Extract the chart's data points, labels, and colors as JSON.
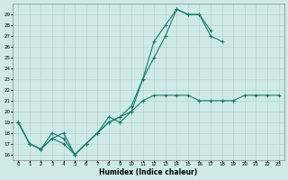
{
  "xlabel": "Humidex (Indice chaleur)",
  "bg_color": "#ceeae6",
  "grid_color": "#b0d4d0",
  "line_color": "#1a7a6e",
  "xlim": [
    -0.5,
    23.5
  ],
  "ylim": [
    15.5,
    30.0
  ],
  "xticks": [
    0,
    1,
    2,
    3,
    4,
    5,
    6,
    7,
    8,
    9,
    10,
    11,
    12,
    13,
    14,
    15,
    16,
    17,
    18,
    19,
    20,
    21,
    22,
    23
  ],
  "yticks": [
    16,
    17,
    18,
    19,
    20,
    21,
    22,
    23,
    24,
    25,
    26,
    27,
    28,
    29
  ],
  "series": [
    {
      "x": [
        0,
        1,
        2,
        3,
        4,
        5,
        6,
        7,
        8,
        9,
        10,
        11,
        12,
        13,
        14,
        15,
        16,
        17,
        18
      ],
      "y": [
        19,
        17,
        16.5,
        18,
        17.5,
        16,
        17,
        18,
        19.5,
        19,
        20,
        23,
        26.5,
        28,
        29.5,
        29,
        29,
        27,
        26.5
      ]
    },
    {
      "x": [
        0,
        1,
        2,
        3,
        4,
        5,
        6,
        7,
        8,
        9,
        10,
        11,
        12,
        13,
        14,
        15,
        16,
        17
      ],
      "y": [
        19,
        17,
        16.5,
        17.5,
        17,
        16,
        17,
        18,
        19,
        19.5,
        20.5,
        23,
        25,
        27,
        29.5,
        29,
        29,
        27.5
      ]
    },
    {
      "x": [
        0,
        1,
        2,
        3,
        4,
        5,
        6,
        7,
        8,
        9,
        10,
        11,
        12,
        13,
        14,
        15,
        16,
        17,
        18,
        19,
        20,
        21,
        22,
        23
      ],
      "y": [
        19,
        17,
        16.5,
        17.5,
        18,
        16,
        17,
        18,
        19,
        19.5,
        20,
        21,
        21.5,
        21.5,
        21.5,
        21.5,
        21,
        21,
        21,
        21,
        21.5,
        21.5,
        21.5,
        21.5
      ]
    }
  ]
}
